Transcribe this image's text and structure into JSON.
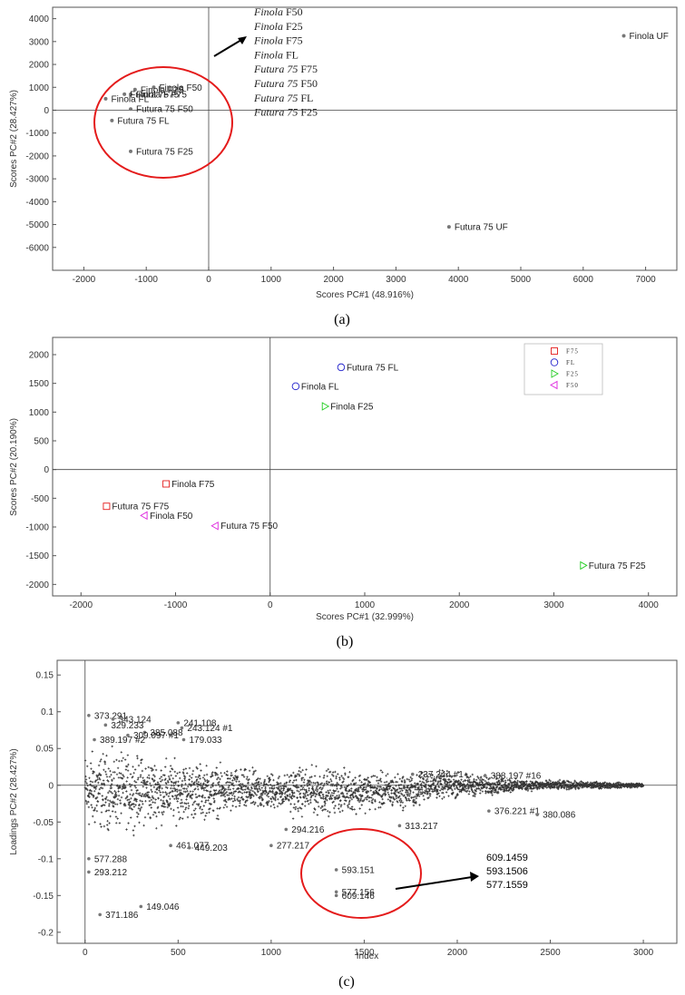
{
  "chart_data": [
    {
      "type": "scatter",
      "panel_label": "(a)",
      "xlabel": "Scores PC#1 (48.916%)",
      "ylabel": "Scores PC#2 (28.427%)",
      "xlim": [
        -2500,
        7500
      ],
      "ylim": [
        -7000,
        4500
      ],
      "xticks": [
        -2000,
        -1000,
        0,
        1000,
        2000,
        3000,
        4000,
        5000,
        6000,
        7000
      ],
      "yticks": [
        4000,
        3000,
        2000,
        1000,
        0,
        -1000,
        -2000,
        -3000,
        -4000,
        -5000,
        -6000
      ],
      "points": [
        {
          "label": "Finola UF",
          "x": 6650,
          "y": 3250
        },
        {
          "label": "Futura 75 UF",
          "x": 3850,
          "y": -5100
        },
        {
          "label": "Finola F50",
          "x": -880,
          "y": 1000
        },
        {
          "label": "Finola F25",
          "x": -1180,
          "y": 900
        },
        {
          "label": "Finola F75",
          "x": -1250,
          "y": 700
        },
        {
          "label": "Futura 75 F75",
          "x": -1350,
          "y": 700
        },
        {
          "label": "Finola FL",
          "x": -1650,
          "y": 500
        },
        {
          "label": "Futura 75 F50",
          "x": -1250,
          "y": 50
        },
        {
          "label": "Futura 75 FL",
          "x": -1550,
          "y": -450
        },
        {
          "label": "Futura 75 F25",
          "x": -1250,
          "y": -1800
        }
      ],
      "annotation_list": [
        {
          "italic": "Finola",
          "suffix": " F50"
        },
        {
          "italic": "Finola",
          "suffix": " F25"
        },
        {
          "italic": "Finola",
          "suffix": " F75"
        },
        {
          "italic": "Finola",
          "suffix": " FL"
        },
        {
          "italic": "Futura 75",
          "suffix": " F75"
        },
        {
          "italic": "Futura 75",
          "suffix": " F50"
        },
        {
          "italic": "Futura 75",
          "suffix": " FL"
        },
        {
          "italic": "Futura 75",
          "suffix": " F25"
        }
      ],
      "highlight_color": "#e41b1b"
    },
    {
      "type": "scatter",
      "panel_label": "(b)",
      "xlabel": "Scores PC#1 (32.999%)",
      "ylabel": "Scores PC#2 (20.190%)",
      "xlim": [
        -2300,
        4300
      ],
      "ylim": [
        -2200,
        2300
      ],
      "xticks": [
        -2000,
        -1000,
        0,
        1000,
        2000,
        3000,
        4000
      ],
      "yticks": [
        2000,
        1500,
        1000,
        500,
        0,
        -500,
        -1000,
        -1500,
        -2000
      ],
      "legend": [
        {
          "marker": "square",
          "label": "F75",
          "color": "#e41b1b"
        },
        {
          "marker": "circle",
          "label": "FL",
          "color": "#2222cc"
        },
        {
          "marker": "tri-right",
          "label": "F25",
          "color": "#22cc22"
        },
        {
          "marker": "tri-left",
          "label": "F50",
          "color": "#dd22dd"
        }
      ],
      "legend_position": "top-right",
      "points": [
        {
          "label": "Futura 75 FL",
          "x": 750,
          "y": 1780,
          "marker": "circle",
          "color": "#2222cc"
        },
        {
          "label": "Finola FL",
          "x": 270,
          "y": 1450,
          "marker": "circle",
          "color": "#2222cc"
        },
        {
          "label": "Finola F25",
          "x": 580,
          "y": 1100,
          "marker": "tri-right",
          "color": "#22cc22"
        },
        {
          "label": "Finola F75",
          "x": -1100,
          "y": -250,
          "marker": "square",
          "color": "#e41b1b"
        },
        {
          "label": "Futura 75 F75",
          "x": -1730,
          "y": -640,
          "marker": "square",
          "color": "#e41b1b"
        },
        {
          "label": "Finola F50",
          "x": -1330,
          "y": -800,
          "marker": "tri-left",
          "color": "#dd22dd"
        },
        {
          "label": "Futura 75 F50",
          "x": -580,
          "y": -980,
          "marker": "tri-left",
          "color": "#dd22dd"
        },
        {
          "label": "Futura 75 F25",
          "x": 3310,
          "y": -1670,
          "marker": "tri-right",
          "color": "#22cc22"
        }
      ]
    },
    {
      "type": "scatter",
      "panel_label": "(c)",
      "xlabel": "Index",
      "ylabel": "Loadings PC#2 (28.427%)",
      "xlim": [
        -150,
        3180
      ],
      "ylim": [
        -0.215,
        0.17
      ],
      "xticks": [
        0,
        500,
        1000,
        1500,
        2000,
        2500,
        3000
      ],
      "yticks": [
        "0.15",
        "0.1",
        "0.05",
        "0",
        "-0.05",
        "-0.1",
        "-0.15",
        "-0.2"
      ],
      "labeled_points": [
        {
          "label": "373.291",
          "x": 20,
          "y": 0.095
        },
        {
          "label": "343.124",
          "x": 150,
          "y": 0.09
        },
        {
          "label": "329.233",
          "x": 110,
          "y": 0.082
        },
        {
          "label": "241.108",
          "x": 500,
          "y": 0.085
        },
        {
          "label": "243.124 #1",
          "x": 520,
          "y": 0.078
        },
        {
          "label": "385.088",
          "x": 320,
          "y": 0.072
        },
        {
          "label": "309.097 #1",
          "x": 230,
          "y": 0.068
        },
        {
          "label": "389.197 #2",
          "x": 50,
          "y": 0.062
        },
        {
          "label": "179.033",
          "x": 530,
          "y": 0.062
        },
        {
          "label": "277.217",
          "x": 1000,
          "y": -0.082
        },
        {
          "label": "294.216",
          "x": 1080,
          "y": -0.06
        },
        {
          "label": "461.077",
          "x": 460,
          "y": -0.082
        },
        {
          "label": "449.203",
          "x": 560,
          "y": -0.085
        },
        {
          "label": "577.288",
          "x": 20,
          "y": -0.1
        },
        {
          "label": "293.212",
          "x": 20,
          "y": -0.118
        },
        {
          "label": "371.186",
          "x": 80,
          "y": -0.176
        },
        {
          "label": "149.046",
          "x": 300,
          "y": -0.165
        },
        {
          "label": "593.151",
          "x": 1350,
          "y": -0.115
        },
        {
          "label": "577.156",
          "x": 1350,
          "y": -0.145
        },
        {
          "label": "609.146",
          "x": 1350,
          "y": -0.15
        },
        {
          "label": "376.221 #1",
          "x": 2170,
          "y": -0.035
        },
        {
          "label": "380.086",
          "x": 2430,
          "y": -0.04
        },
        {
          "label": "388.197 #16",
          "x": 2150,
          "y": 0.013
        },
        {
          "label": "237.244 #1",
          "x": 1760,
          "y": 0.015
        },
        {
          "label": "313.217",
          "x": 1690,
          "y": -0.055
        }
      ],
      "annotation_values": [
        "609.1459",
        "593.1506",
        "577.1559"
      ],
      "highlight_color": "#e41b1b"
    }
  ]
}
